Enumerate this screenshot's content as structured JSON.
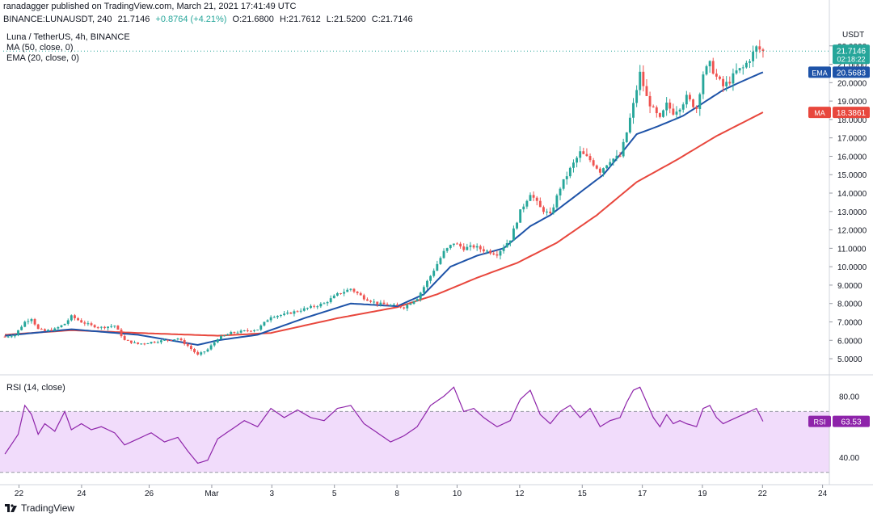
{
  "header": {
    "publish_line": "ranadagger published on TradingView.com, March 21, 2021 17:41:49 UTC",
    "symbol": "BINANCE:LUNAUSDT, 240",
    "last": "21.7146",
    "change": "+0.8764 (+4.21%)",
    "open": "O:21.6800",
    "high": "H:21.7612",
    "low": "L:21.5200",
    "close": "C:21.7146"
  },
  "legend": {
    "title": "Luna / TetherUS, 4h, BINANCE",
    "ma": "MA (50, close, 0)",
    "ema": "EMA (20, close, 0)"
  },
  "rsi_panel": {
    "label": "RSI (14, close)"
  },
  "footer": {
    "brand": "TradingView"
  },
  "colors": {
    "up": "#26a69a",
    "down": "#ef5350",
    "ema": "#1e53a8",
    "ma": "#e8473d",
    "rsi": "#8e24aa",
    "rsi_band": "#f1dcfb"
  },
  "chart_data": [
    {
      "type": "candlestick",
      "unit": "USDT",
      "y_axis": {
        "min": 4.3,
        "max": 23.0,
        "ticks": [
          "5.0000",
          "6.0000",
          "7.0000",
          "8.0000",
          "9.0000",
          "10.0000",
          "11.0000",
          "12.0000",
          "13.0000",
          "14.0000",
          "15.0000",
          "16.0000",
          "17.0000",
          "18.0000",
          "19.0000",
          "20.0000",
          "21.0000",
          "22.0000"
        ]
      },
      "x_axis": {
        "ticks": [
          "22",
          "24",
          "26",
          "Mar",
          "3",
          "5",
          "8",
          "10",
          "12",
          "15",
          "17",
          "19",
          "22",
          "24"
        ]
      },
      "badges": {
        "price": {
          "label": "21.7146",
          "sub": "02:18:22",
          "value": 21.7146
        },
        "ema": {
          "label": "EMA",
          "value_text": "20.5683",
          "value": 20.5683
        },
        "ma": {
          "label": "MA",
          "value_text": "18.3861",
          "value": 18.3861
        },
        "unit": "USDT"
      },
      "price_anchors": [
        [
          0,
          6.2
        ],
        [
          3,
          6.3
        ],
        [
          6,
          7.0
        ],
        [
          8,
          7.2
        ],
        [
          10,
          6.6
        ],
        [
          12,
          6.5
        ],
        [
          15,
          6.6
        ],
        [
          18,
          6.9
        ],
        [
          20,
          7.3
        ],
        [
          23,
          7.0
        ],
        [
          26,
          6.8
        ],
        [
          29,
          6.7
        ],
        [
          33,
          6.8
        ],
        [
          36,
          6.0
        ],
        [
          40,
          5.8
        ],
        [
          44,
          5.9
        ],
        [
          48,
          6.0
        ],
        [
          52,
          6.1
        ],
        [
          55,
          5.7
        ],
        [
          58,
          5.2
        ],
        [
          61,
          5.5
        ],
        [
          64,
          6.1
        ],
        [
          68,
          6.4
        ],
        [
          72,
          6.5
        ],
        [
          76,
          6.6
        ],
        [
          80,
          7.3
        ],
        [
          84,
          7.4
        ],
        [
          88,
          7.6
        ],
        [
          92,
          7.8
        ],
        [
          96,
          8.0
        ],
        [
          100,
          8.5
        ],
        [
          104,
          8.8
        ],
        [
          108,
          8.3
        ],
        [
          112,
          8.0
        ],
        [
          116,
          7.9
        ],
        [
          120,
          7.8
        ],
        [
          124,
          8.3
        ],
        [
          128,
          9.5
        ],
        [
          132,
          10.8
        ],
        [
          135,
          11.3
        ],
        [
          138,
          11.0
        ],
        [
          141,
          11.1
        ],
        [
          144,
          10.9
        ],
        [
          148,
          10.7
        ],
        [
          152,
          11.5
        ],
        [
          155,
          13.0
        ],
        [
          158,
          14.0
        ],
        [
          161,
          13.2
        ],
        [
          164,
          12.8
        ],
        [
          167,
          14.3
        ],
        [
          170,
          15.3
        ],
        [
          173,
          16.2
        ],
        [
          176,
          15.8
        ],
        [
          179,
          15.2
        ],
        [
          182,
          15.8
        ],
        [
          185,
          16.0
        ],
        [
          187,
          17.3
        ],
        [
          189,
          18.8
        ],
        [
          191,
          20.5
        ],
        [
          193,
          19.2
        ],
        [
          195,
          18.5
        ],
        [
          197,
          18.0
        ],
        [
          199,
          18.8
        ],
        [
          201,
          18.4
        ],
        [
          203,
          18.7
        ],
        [
          205,
          19.2
        ],
        [
          208,
          18.6
        ],
        [
          210,
          20.5
        ],
        [
          212,
          21.0
        ],
        [
          214,
          20.3
        ],
        [
          216,
          19.8
        ],
        [
          218,
          20.1
        ],
        [
          220,
          20.6
        ],
        [
          222,
          20.8
        ],
        [
          224,
          21.3
        ],
        [
          226,
          21.9
        ],
        [
          228,
          21.7
        ]
      ],
      "ema_anchors": [
        [
          0,
          6.25
        ],
        [
          20,
          6.6
        ],
        [
          40,
          6.3
        ],
        [
          58,
          5.75
        ],
        [
          64,
          6.0
        ],
        [
          76,
          6.3
        ],
        [
          90,
          7.2
        ],
        [
          104,
          8.0
        ],
        [
          118,
          7.85
        ],
        [
          126,
          8.5
        ],
        [
          134,
          10.0
        ],
        [
          142,
          10.6
        ],
        [
          150,
          11.0
        ],
        [
          158,
          12.2
        ],
        [
          164,
          12.8
        ],
        [
          172,
          13.9
        ],
        [
          180,
          15.0
        ],
        [
          186,
          16.3
        ],
        [
          190,
          17.2
        ],
        [
          196,
          17.6
        ],
        [
          204,
          18.2
        ],
        [
          210,
          18.9
        ],
        [
          216,
          19.6
        ],
        [
          222,
          20.1
        ],
        [
          228,
          20.57
        ]
      ],
      "ma_anchors": [
        [
          0,
          6.3
        ],
        [
          20,
          6.55
        ],
        [
          40,
          6.4
        ],
        [
          64,
          6.25
        ],
        [
          80,
          6.4
        ],
        [
          100,
          7.2
        ],
        [
          118,
          7.8
        ],
        [
          130,
          8.5
        ],
        [
          142,
          9.4
        ],
        [
          154,
          10.2
        ],
        [
          166,
          11.3
        ],
        [
          178,
          12.8
        ],
        [
          190,
          14.6
        ],
        [
          202,
          15.8
        ],
        [
          214,
          17.1
        ],
        [
          228,
          18.39
        ]
      ]
    },
    {
      "type": "line",
      "name": "RSI (14, close)",
      "y_axis": {
        "min": 24,
        "max": 92,
        "ticks": [
          "40.00",
          "80.00"
        ]
      },
      "band": [
        30,
        70
      ],
      "badge": {
        "label": "RSI",
        "value_text": "63.53",
        "value": 63.53
      },
      "points": [
        [
          0,
          42
        ],
        [
          4,
          55
        ],
        [
          6,
          74
        ],
        [
          8,
          68
        ],
        [
          10,
          55
        ],
        [
          12,
          62
        ],
        [
          15,
          57
        ],
        [
          18,
          70
        ],
        [
          20,
          58
        ],
        [
          23,
          62
        ],
        [
          26,
          58
        ],
        [
          29,
          60
        ],
        [
          33,
          56
        ],
        [
          36,
          48
        ],
        [
          40,
          52
        ],
        [
          44,
          56
        ],
        [
          48,
          50
        ],
        [
          52,
          53
        ],
        [
          55,
          44
        ],
        [
          58,
          36
        ],
        [
          61,
          38
        ],
        [
          64,
          52
        ],
        [
          68,
          58
        ],
        [
          72,
          64
        ],
        [
          76,
          60
        ],
        [
          80,
          72
        ],
        [
          84,
          66
        ],
        [
          88,
          71
        ],
        [
          92,
          66
        ],
        [
          96,
          64
        ],
        [
          100,
          72
        ],
        [
          104,
          74
        ],
        [
          108,
          62
        ],
        [
          112,
          56
        ],
        [
          116,
          50
        ],
        [
          120,
          54
        ],
        [
          124,
          60
        ],
        [
          128,
          74
        ],
        [
          132,
          80
        ],
        [
          135,
          86
        ],
        [
          138,
          70
        ],
        [
          141,
          72
        ],
        [
          144,
          66
        ],
        [
          148,
          60
        ],
        [
          152,
          64
        ],
        [
          155,
          78
        ],
        [
          158,
          84
        ],
        [
          161,
          68
        ],
        [
          164,
          62
        ],
        [
          167,
          70
        ],
        [
          170,
          74
        ],
        [
          173,
          66
        ],
        [
          176,
          72
        ],
        [
          179,
          60
        ],
        [
          182,
          64
        ],
        [
          185,
          66
        ],
        [
          187,
          76
        ],
        [
          189,
          84
        ],
        [
          191,
          86
        ],
        [
          193,
          76
        ],
        [
          195,
          66
        ],
        [
          197,
          60
        ],
        [
          199,
          68
        ],
        [
          201,
          62
        ],
        [
          203,
          64
        ],
        [
          205,
          62
        ],
        [
          208,
          60
        ],
        [
          210,
          72
        ],
        [
          212,
          74
        ],
        [
          214,
          66
        ],
        [
          216,
          62
        ],
        [
          218,
          64
        ],
        [
          220,
          66
        ],
        [
          222,
          68
        ],
        [
          224,
          70
        ],
        [
          226,
          72
        ],
        [
          228,
          63.5
        ]
      ]
    }
  ]
}
